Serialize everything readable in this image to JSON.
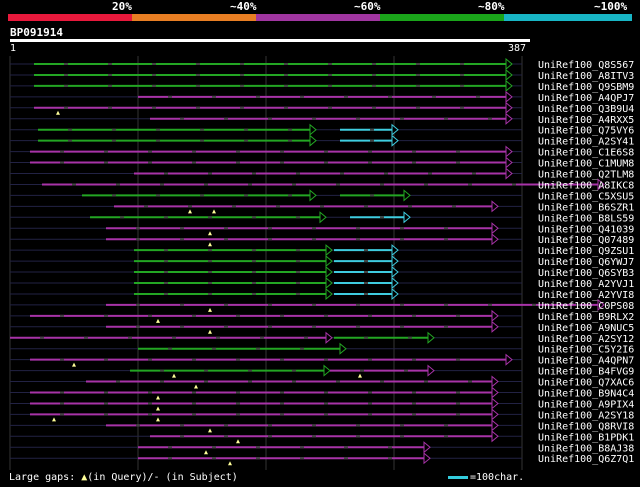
{
  "scale": {
    "labels": [
      "20%",
      "~40%",
      "~60%",
      "~80%",
      "~100%"
    ],
    "colors": [
      "#e8193c",
      "#e87e23",
      "#a035a0",
      "#1aa51a",
      "#18b5c5"
    ]
  },
  "query": {
    "id": "BP091914",
    "start": "1",
    "end": "387",
    "length": 387
  },
  "colors": {
    "green": "#23a623",
    "purple": "#a833a8",
    "cyan": "#3fcde0",
    "gap_tri": "#ffff99",
    "dim": "#222244",
    "grid": "#333333"
  },
  "hits": [
    {
      "name": "UniRef100_Q8S567",
      "color": "green"
    },
    {
      "name": "UniRef100_A8ITV3",
      "color": "green"
    },
    {
      "name": "UniRef100_Q9SBM9",
      "color": "green"
    },
    {
      "name": "UniRef100_A4QPJ7",
      "color": "purple"
    },
    {
      "name": "UniRef100_Q3B9U4",
      "color": "purple"
    },
    {
      "name": "UniRef100_A4RXX5",
      "color": "purple"
    },
    {
      "name": "UniRef100_Q75VY6",
      "color": "green+cyan"
    },
    {
      "name": "UniRef100_A2SY41",
      "color": "green+cyan"
    },
    {
      "name": "UniRef100_C1E6S8",
      "color": "purple"
    },
    {
      "name": "UniRef100_C1MUM8",
      "color": "purple"
    },
    {
      "name": "UniRef100_Q2TLM8",
      "color": "purple"
    },
    {
      "name": "UniRef100_A8IKC8",
      "color": "purple"
    },
    {
      "name": "UniRef100_C5XSU5",
      "color": "green"
    },
    {
      "name": "UniRef100_B6SZR1",
      "color": "purple"
    },
    {
      "name": "UniRef100_B8LS59",
      "color": "green+cyan"
    },
    {
      "name": "UniRef100_Q41039",
      "color": "purple"
    },
    {
      "name": "UniRef100_Q07489",
      "color": "purple"
    },
    {
      "name": "UniRef100_Q9ZSU1",
      "color": "green+cyan"
    },
    {
      "name": "UniRef100_Q6YWJ7",
      "color": "green+cyan"
    },
    {
      "name": "UniRef100_Q6SYB3",
      "color": "green+cyan"
    },
    {
      "name": "UniRef100_A2YVJ1",
      "color": "green+cyan"
    },
    {
      "name": "UniRef100_A2YVI8",
      "color": "green+cyan"
    },
    {
      "name": "UniRef100_C0PS08",
      "color": "purple"
    },
    {
      "name": "UniRef100_B9RLX2",
      "color": "purple"
    },
    {
      "name": "UniRef100_A9NUC5",
      "color": "purple"
    },
    {
      "name": "UniRef100_A2SY12",
      "color": "purple+green"
    },
    {
      "name": "UniRef100_C5Y2I6",
      "color": "green"
    },
    {
      "name": "UniRef100_A4QPN7",
      "color": "purple"
    },
    {
      "name": "UniRef100_B4FVG9",
      "color": "green+purple"
    },
    {
      "name": "UniRef100_Q7XAC6",
      "color": "purple"
    },
    {
      "name": "UniRef100_B9N4C4",
      "color": "purple"
    },
    {
      "name": "UniRef100_A9PIX4",
      "color": "purple"
    },
    {
      "name": "UniRef100_A2SY18",
      "color": "purple"
    },
    {
      "name": "UniRef100_Q8RVI8",
      "color": "purple"
    },
    {
      "name": "UniRef100_B1PDK1",
      "color": "purple"
    },
    {
      "name": "UniRef100_B8AJ38",
      "color": "purple"
    },
    {
      "name": "UniRef100_Q6Z7Q1",
      "color": "purple"
    }
  ],
  "legend": {
    "prefix": "Large gaps: ",
    "query_marker": "▲",
    "query_text": "(in Query)/",
    "subject_text": "- (in Subject)",
    "scale_text": "=100char."
  }
}
